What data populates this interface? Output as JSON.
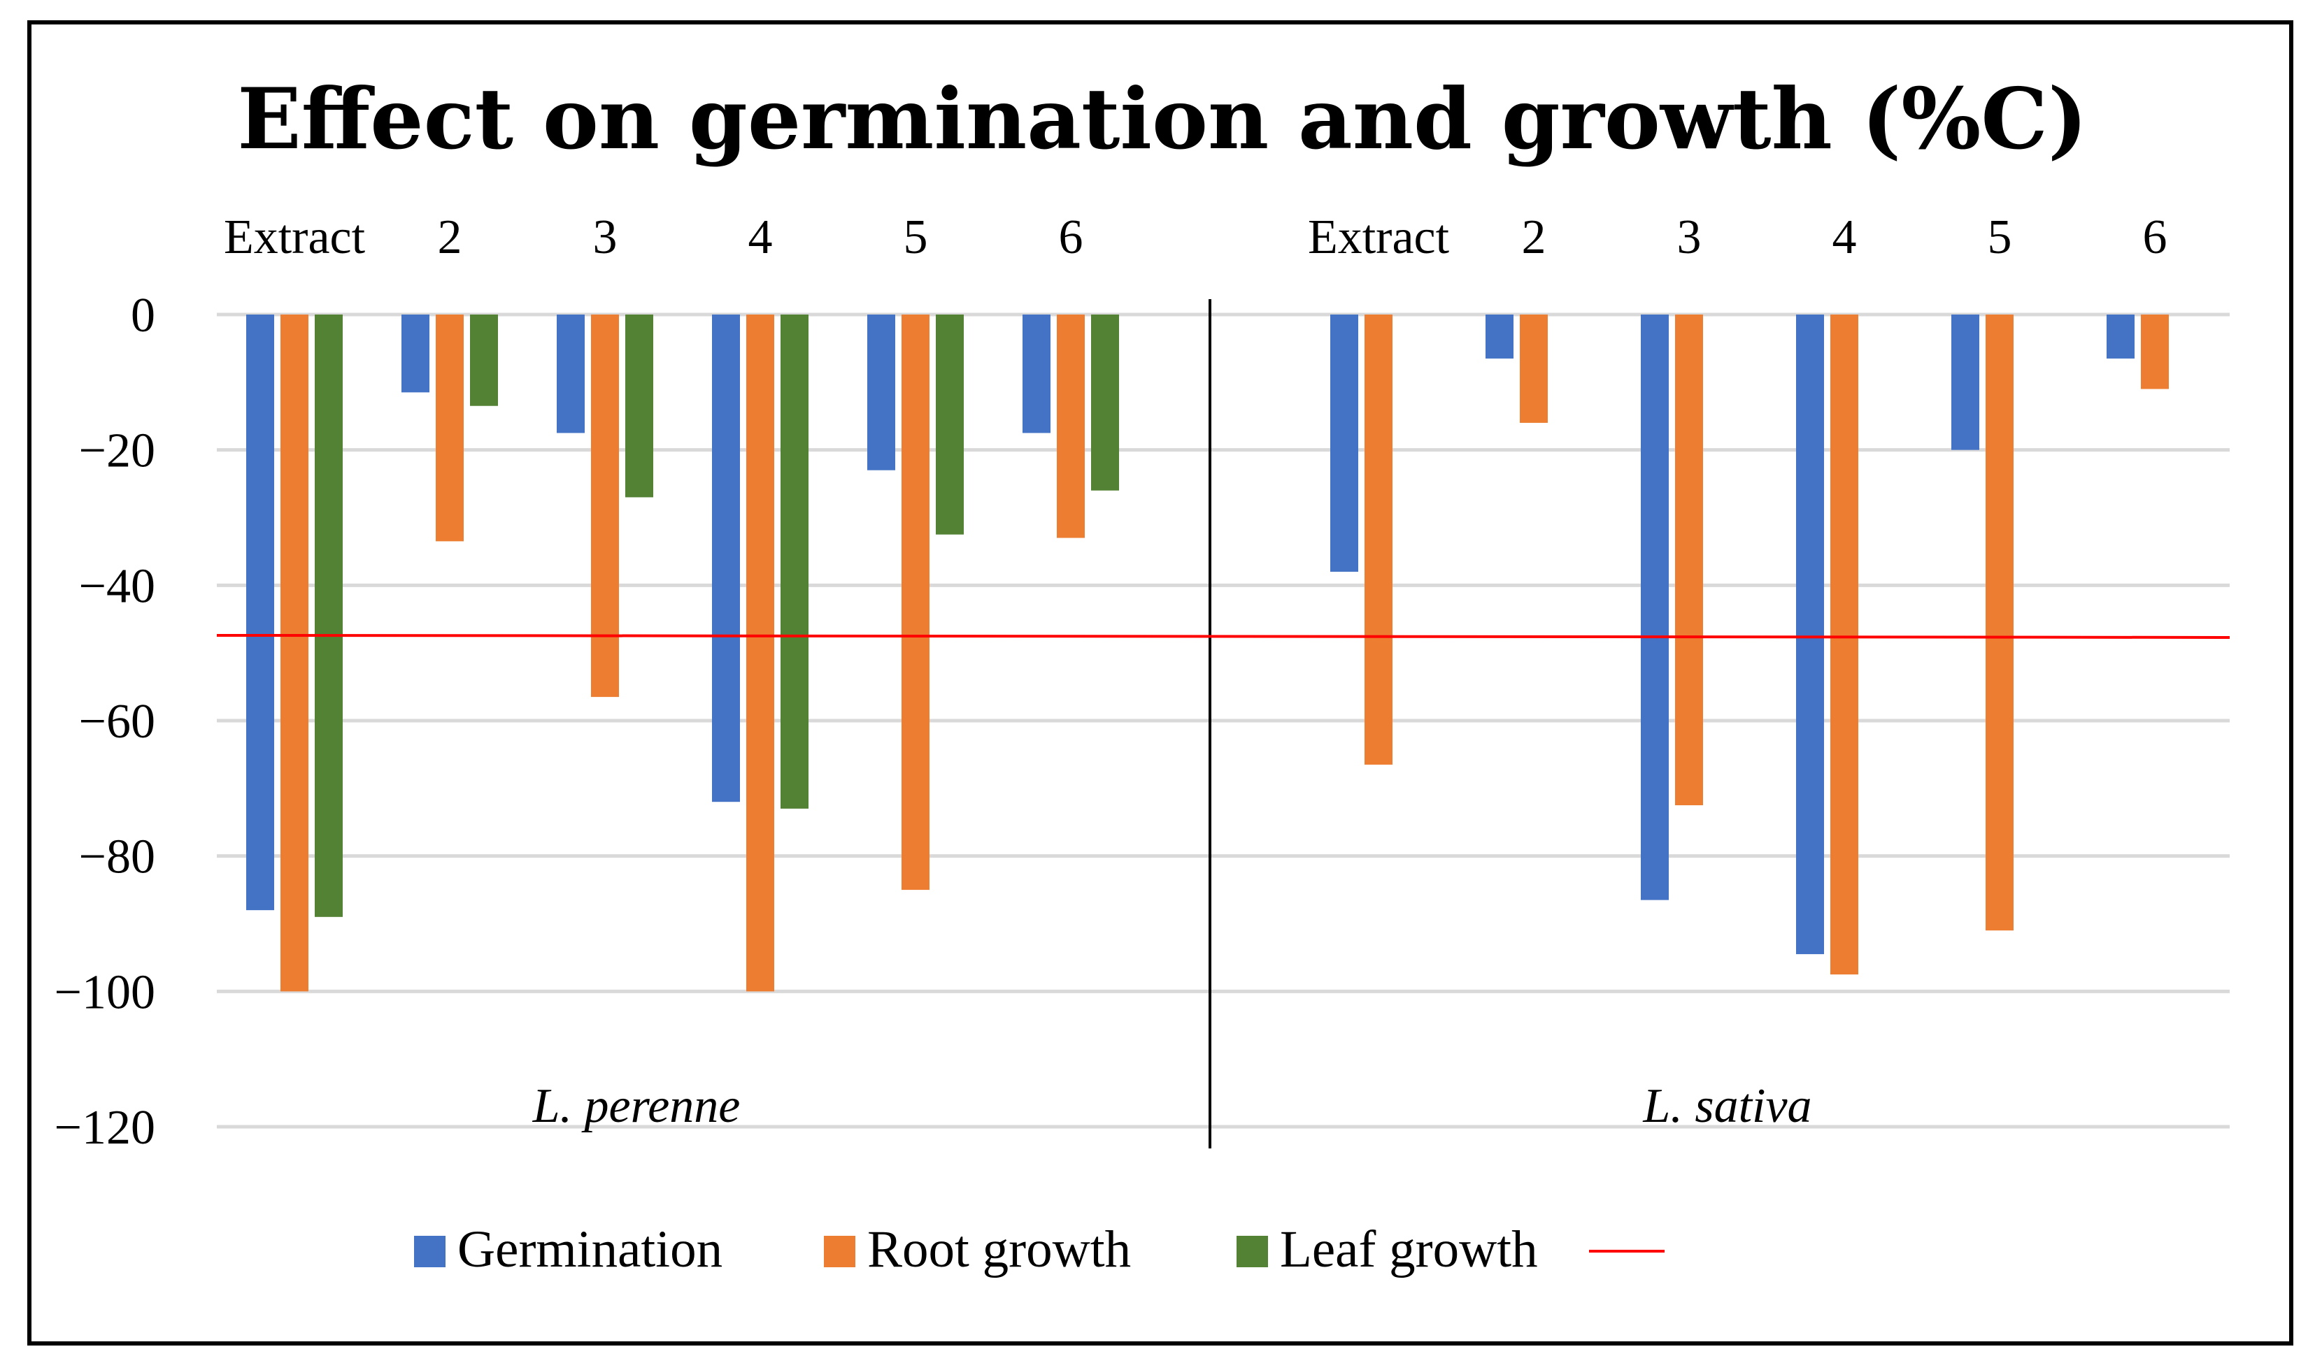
{
  "chart_data": {
    "type": "bar",
    "title": "Effect on germination and growth (%C)",
    "xlabel": "",
    "ylabel": "",
    "ylim": [
      -120,
      0
    ],
    "yticks": [
      0,
      -20,
      -40,
      -60,
      -80,
      -100,
      -120
    ],
    "ytick_labels": [
      "0",
      "−20",
      "−40",
      "−60",
      "−80",
      "−100",
      "−120"
    ],
    "grid": true,
    "reference_line": -47.5,
    "reference_color": "#ff0000",
    "groups": [
      {
        "name": "L. perenne",
        "categories": [
          "Extract",
          "2",
          "3",
          "4",
          "5",
          "6"
        ],
        "series": [
          {
            "name": "Germination",
            "color": "#4472c4",
            "values": [
              -88,
              -11.5,
              -17.5,
              -72,
              -23,
              -17.5
            ]
          },
          {
            "name": "Root growth",
            "color": "#ed7d31",
            "values": [
              -100,
              -33.5,
              -56.5,
              -100,
              -85,
              -33
            ]
          },
          {
            "name": "Leaf growth",
            "color": "#548235",
            "values": [
              -89,
              -13.5,
              -27,
              -73,
              -32.5,
              -26
            ]
          }
        ]
      },
      {
        "name": "L. sativa",
        "categories": [
          "Extract",
          "2",
          "3",
          "4",
          "5",
          "6"
        ],
        "series": [
          {
            "name": "Germination",
            "color": "#4472c4",
            "values": [
              -38,
              -6.5,
              -86.5,
              -94.5,
              -20,
              -6.5
            ]
          },
          {
            "name": "Root growth",
            "color": "#ed7d31",
            "values": [
              -66.5,
              -16,
              -72.5,
              -97.5,
              -91,
              -11
            ]
          },
          {
            "name": "Leaf growth",
            "color": "#548235",
            "values": [
              null,
              null,
              null,
              null,
              null,
              null
            ]
          }
        ]
      }
    ],
    "legend": [
      {
        "label": "Germination",
        "color": "#4472c4",
        "kind": "box"
      },
      {
        "label": "Root growth",
        "color": "#ed7d31",
        "kind": "box"
      },
      {
        "label": "Leaf growth",
        "color": "#548235",
        "kind": "box"
      },
      {
        "label": "",
        "color": "#ff0000",
        "kind": "line"
      }
    ],
    "legend_position": "bottom"
  }
}
